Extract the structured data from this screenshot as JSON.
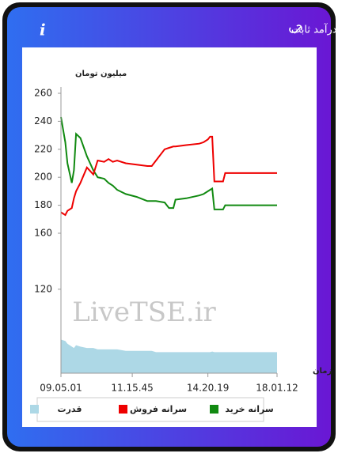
{
  "header": {
    "title": "سرانه ی خرید و فروش حقیقی در صندوق های درآمد ثابت"
  },
  "chart_data": {
    "type": "line",
    "y_axis_label": "میلیون تومان",
    "x_axis_label": "زمان",
    "watermark": "LiveTSE.ir",
    "x": [
      0,
      2,
      3,
      5,
      6,
      7,
      9,
      12,
      15,
      17,
      20,
      22,
      24,
      26,
      30,
      35,
      40,
      42,
      44,
      48,
      50,
      52,
      53,
      58,
      64,
      66,
      68,
      69,
      70,
      71,
      75,
      76,
      100
    ],
    "xlim": [
      0,
      100
    ],
    "xticks": [
      {
        "value": 0,
        "label": "09.05.01"
      },
      {
        "value": 33,
        "label": "11.15.45"
      },
      {
        "value": 68,
        "label": "14.20.19"
      },
      {
        "value": 100,
        "label": "18.01.12"
      }
    ],
    "ylim": [
      60,
      260
    ],
    "yticks": [
      260,
      240,
      220,
      200,
      180,
      160,
      120
    ],
    "series": [
      {
        "name": "سرانه خرید",
        "color": "#118a11",
        "values": [
          243,
          225,
          210,
          196,
          205,
          231,
          228,
          215,
          205,
          200,
          199,
          196,
          194,
          191,
          188,
          186,
          183,
          183,
          183,
          182,
          178,
          178,
          184,
          185,
          187,
          188,
          190,
          191,
          192,
          177,
          177,
          180,
          180
        ]
      },
      {
        "name": "سرانه فروش",
        "color": "#ee0000",
        "values": [
          175,
          173,
          176,
          178,
          185,
          190,
          196,
          207,
          202,
          212,
          211,
          213,
          211,
          212,
          210,
          209,
          208,
          208,
          212,
          220,
          221,
          222,
          222,
          223,
          224,
          225,
          227,
          229,
          229,
          197,
          197,
          203,
          203
        ]
      },
      {
        "name": "قدرت",
        "color": "#add8e6",
        "area": true,
        "values": [
          84,
          83,
          81,
          79,
          78,
          80,
          79,
          78,
          78,
          77,
          77,
          77,
          77,
          77,
          76,
          76,
          76,
          76,
          75,
          75,
          75,
          75,
          75,
          75,
          75,
          75,
          75,
          75,
          75.5,
          75,
          75,
          75,
          75
        ]
      }
    ]
  }
}
